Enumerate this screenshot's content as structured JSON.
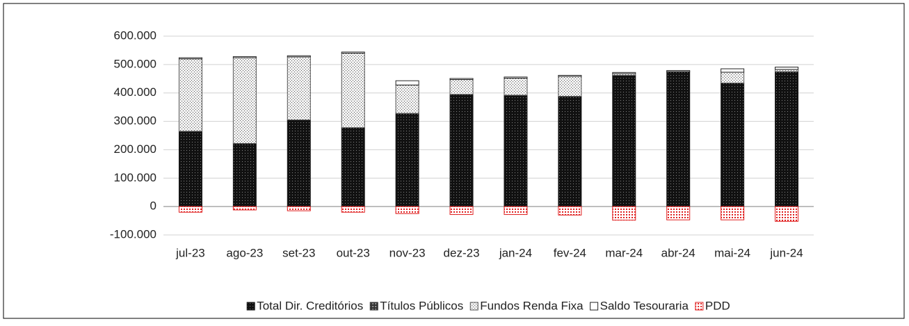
{
  "chart_data": {
    "type": "stacked_bar",
    "categories": [
      "jul-23",
      "ago-23",
      "set-23",
      "out-23",
      "nov-23",
      "dez-23",
      "jan-24",
      "fev-24",
      "mar-24",
      "abr-24",
      "mai-24",
      "jun-24"
    ],
    "series": [
      {
        "name": "Total Dir. Creditórios",
        "color": "#1a1a1a",
        "values": [
          265000,
          222000,
          305000,
          278000,
          328000,
          395000,
          392000,
          388000,
          462000,
          475000,
          435000,
          475000
        ]
      },
      {
        "name": "Títulos Públicos",
        "color": "#333333",
        "values": [
          0,
          0,
          0,
          0,
          0,
          0,
          0,
          0,
          0,
          0,
          0,
          0
        ]
      },
      {
        "name": "Fundos Renda Fixa",
        "color": "#555555",
        "values": [
          255000,
          302000,
          222000,
          262000,
          100000,
          52000,
          60000,
          70000,
          6000,
          0,
          38000,
          8000
        ]
      },
      {
        "name": "Saldo Tesouraria",
        "color": "#222222",
        "values": [
          4000,
          4000,
          4000,
          4000,
          15000,
          4000,
          4000,
          4000,
          4000,
          4000,
          12000,
          8000
        ]
      },
      {
        "name": "PDD",
        "color": "#e02020",
        "values": [
          -20000,
          -12000,
          -15000,
          -20000,
          -25000,
          -28000,
          -28000,
          -30000,
          -48000,
          -47000,
          -47000,
          -52000
        ]
      }
    ],
    "ylim": [
      -100000,
      600000
    ],
    "yticks": [
      {
        "value": -100000,
        "label": "-100.000"
      },
      0,
      {
        "value": 100000,
        "label": "100.000"
      },
      {
        "value": 200000,
        "label": "200.000"
      },
      {
        "value": 300000,
        "label": "300.000"
      },
      {
        "value": 400000,
        "label": "400.000"
      },
      {
        "value": 500000,
        "label": "500.000"
      },
      {
        "value": 600000,
        "label": "600.000"
      }
    ],
    "grid": true
  }
}
